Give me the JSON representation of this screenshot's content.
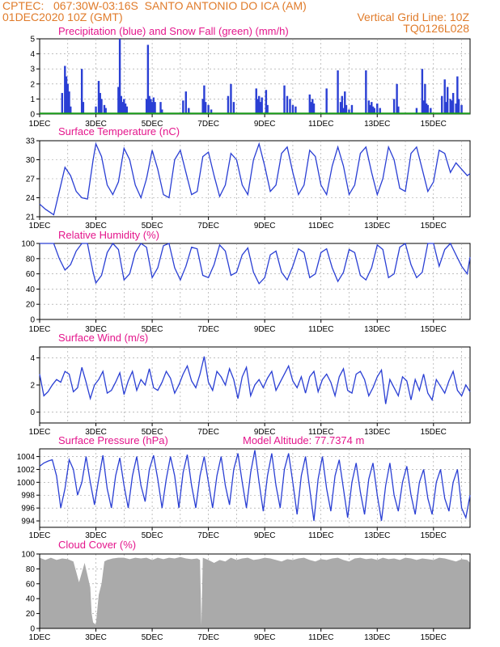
{
  "header": {
    "line1": "CPTEC:   067:30W-03:16S  SANTO ANTONIO DO ICA (AM)",
    "line2_left": "01DEC2020 10Z (GMT)",
    "line2_right": "Vertical Grid Line: 10Z",
    "line3_right": "TQ0126L028"
  },
  "colors": {
    "title": "#e4168c",
    "header": "#e07b2a",
    "line": "#2a3fd4",
    "snow": "#1a9c1a",
    "cloud": "#aaaaaa"
  },
  "x_ticks": [
    "1DEC",
    "3DEC",
    "5DEC",
    "7DEC",
    "9DEC",
    "11DEC",
    "13DEC",
    "15DEC"
  ],
  "x_tick_day": [
    1,
    3,
    5,
    7,
    9,
    11,
    13,
    15
  ],
  "x_range_days": [
    1,
    16.3
  ],
  "chart_data": [
    {
      "id": "precip",
      "type": "bar",
      "title": "Precipitation (blue) and Snow Fall (green) (mm/h)",
      "ylim": [
        0,
        5
      ],
      "yticks": [
        0,
        1,
        2,
        3,
        4,
        5
      ],
      "x_days": [
        1.8,
        1.9,
        1.95,
        2.0,
        2.05,
        2.1,
        2.5,
        2.55,
        3.0,
        3.1,
        3.15,
        3.2,
        3.3,
        3.35,
        3.8,
        3.85,
        3.9,
        3.95,
        4.0,
        4.05,
        4.1,
        4.8,
        4.85,
        4.9,
        4.95,
        5.0,
        5.05,
        5.1,
        5.3,
        5.35,
        6.1,
        6.2,
        6.3,
        6.8,
        6.85,
        6.9,
        7.0,
        7.1,
        7.7,
        7.8,
        7.9,
        8.7,
        8.75,
        8.8,
        8.85,
        8.9,
        9.05,
        9.1,
        9.7,
        9.8,
        9.9,
        10.0,
        10.1,
        10.6,
        10.65,
        10.7,
        10.75,
        11.2,
        11.6,
        11.7,
        11.75,
        11.8,
        11.85,
        11.9,
        12.0,
        12.1,
        12.6,
        12.7,
        12.75,
        12.8,
        12.85,
        12.9,
        13.0,
        13.1,
        13.6,
        13.7,
        13.75,
        14.4,
        14.6,
        14.65,
        14.7,
        14.75,
        14.8,
        14.9,
        15.3,
        15.4,
        15.45,
        15.5,
        15.6,
        15.65,
        15.7,
        15.8,
        15.85,
        15.9,
        16.0
      ],
      "values": [
        1.4,
        3.2,
        2.5,
        2.0,
        1.5,
        0.5,
        3.0,
        0.8,
        0.5,
        2.2,
        1.4,
        1.0,
        0.6,
        0.4,
        1.8,
        5.0,
        1.2,
        0.8,
        1.0,
        0.7,
        0.5,
        1.0,
        4.6,
        1.2,
        1.0,
        0.8,
        1.1,
        0.8,
        0.8,
        0.3,
        0.9,
        1.5,
        0.4,
        1.0,
        1.9,
        0.8,
        0.6,
        0.3,
        1.2,
        2.0,
        0.8,
        1.7,
        1.0,
        1.2,
        0.8,
        1.1,
        1.6,
        0.6,
        1.9,
        1.2,
        1.0,
        0.6,
        0.5,
        1.3,
        0.8,
        1.0,
        0.7,
        1.7,
        2.9,
        0.8,
        1.2,
        0.4,
        1.5,
        0.6,
        0.3,
        0.6,
        2.9,
        0.9,
        0.6,
        0.8,
        0.5,
        0.4,
        0.7,
        0.4,
        1.0,
        2.0,
        0.5,
        0.4,
        3.0,
        0.9,
        2.0,
        0.7,
        0.6,
        0.4,
        1.2,
        2.3,
        0.8,
        1.8,
        1.0,
        0.9,
        1.4,
        0.7,
        2.5,
        1.0,
        0.6
      ]
    },
    {
      "id": "temp",
      "type": "line",
      "title": "Surface Temperature (nC)",
      "ylim": [
        21,
        33
      ],
      "yticks": [
        21,
        24,
        27,
        30,
        33
      ],
      "x_days": [
        1.0,
        1.2,
        1.5,
        1.7,
        1.9,
        2.1,
        2.3,
        2.5,
        2.7,
        2.9,
        3.0,
        3.2,
        3.4,
        3.6,
        3.8,
        4.0,
        4.2,
        4.4,
        4.6,
        4.8,
        5.0,
        5.2,
        5.4,
        5.6,
        5.8,
        6.0,
        6.2,
        6.4,
        6.6,
        6.8,
        7.0,
        7.2,
        7.4,
        7.6,
        7.8,
        8.0,
        8.2,
        8.4,
        8.6,
        8.8,
        9.0,
        9.2,
        9.4,
        9.6,
        9.8,
        10.0,
        10.2,
        10.4,
        10.6,
        10.8,
        11.0,
        11.2,
        11.4,
        11.6,
        11.8,
        12.0,
        12.2,
        12.4,
        12.6,
        12.8,
        13.0,
        13.2,
        13.4,
        13.6,
        13.8,
        14.0,
        14.2,
        14.4,
        14.6,
        14.8,
        15.0,
        15.2,
        15.4,
        15.6,
        15.8,
        16.0,
        16.2,
        16.3
      ],
      "values": [
        23.0,
        22.2,
        21.3,
        25.0,
        28.8,
        27.5,
        25.0,
        24.0,
        23.8,
        30.0,
        32.5,
        30.5,
        26.0,
        24.5,
        26.5,
        31.8,
        30.0,
        26.0,
        24.0,
        27.0,
        31.5,
        28.5,
        24.5,
        24.0,
        30.0,
        31.5,
        28.0,
        24.5,
        25.0,
        30.5,
        31.2,
        27.5,
        24.2,
        26.0,
        31.0,
        30.0,
        26.0,
        24.5,
        30.0,
        32.5,
        29.0,
        25.0,
        26.0,
        31.0,
        32.0,
        28.0,
        24.5,
        26.0,
        31.5,
        30.5,
        26.0,
        24.5,
        29.0,
        32.0,
        29.0,
        24.5,
        26.0,
        31.0,
        32.0,
        28.0,
        24.5,
        27.0,
        32.0,
        30.0,
        25.5,
        25.0,
        31.0,
        32.0,
        28.5,
        25.0,
        26.5,
        31.5,
        31.0,
        28.0,
        29.5,
        28.5,
        27.5,
        27.8
      ]
    },
    {
      "id": "rh",
      "type": "line",
      "title": "Relative Humidity (%)",
      "ylim": [
        0,
        100
      ],
      "yticks": [
        0,
        20,
        40,
        60,
        80,
        100
      ],
      "x_days": [
        1.0,
        1.2,
        1.5,
        1.7,
        1.9,
        2.1,
        2.3,
        2.5,
        2.7,
        2.9,
        3.0,
        3.2,
        3.4,
        3.6,
        3.8,
        4.0,
        4.2,
        4.4,
        4.6,
        4.8,
        5.0,
        5.2,
        5.4,
        5.6,
        5.8,
        6.0,
        6.2,
        6.4,
        6.6,
        6.8,
        7.0,
        7.2,
        7.4,
        7.6,
        7.8,
        8.0,
        8.2,
        8.4,
        8.6,
        8.8,
        9.0,
        9.2,
        9.4,
        9.6,
        9.8,
        10.0,
        10.2,
        10.4,
        10.6,
        10.8,
        11.0,
        11.2,
        11.4,
        11.6,
        11.8,
        12.0,
        12.2,
        12.4,
        12.6,
        12.8,
        13.0,
        13.2,
        13.4,
        13.6,
        13.8,
        14.0,
        14.2,
        14.4,
        14.6,
        14.8,
        15.0,
        15.2,
        15.4,
        15.6,
        15.8,
        16.0,
        16.2,
        16.3
      ],
      "values": [
        100,
        100,
        100,
        80,
        65,
        72,
        90,
        100,
        100,
        62,
        48,
        58,
        88,
        100,
        92,
        52,
        60,
        88,
        100,
        95,
        55,
        68,
        97,
        100,
        68,
        52,
        70,
        95,
        93,
        58,
        55,
        72,
        98,
        90,
        58,
        62,
        85,
        94,
        62,
        47,
        55,
        85,
        90,
        62,
        52,
        70,
        93,
        88,
        55,
        60,
        88,
        93,
        68,
        50,
        62,
        92,
        88,
        58,
        52,
        68,
        98,
        92,
        55,
        60,
        95,
        100,
        72,
        55,
        62,
        100,
        100,
        70,
        92,
        100,
        85,
        70,
        60,
        82
      ]
    },
    {
      "id": "wind",
      "type": "line",
      "title": "Surface Wind (m/s)",
      "ylim": [
        -0.8,
        4.8
      ],
      "yticks": [
        0,
        2,
        4
      ],
      "x_days": [
        1.0,
        1.15,
        1.3,
        1.45,
        1.6,
        1.75,
        1.9,
        2.05,
        2.2,
        2.35,
        2.5,
        2.65,
        2.8,
        2.95,
        3.1,
        3.25,
        3.4,
        3.55,
        3.7,
        3.85,
        4.0,
        4.15,
        4.3,
        4.45,
        4.6,
        4.75,
        4.9,
        5.05,
        5.2,
        5.35,
        5.5,
        5.65,
        5.8,
        5.95,
        6.1,
        6.25,
        6.4,
        6.55,
        6.7,
        6.85,
        7.0,
        7.15,
        7.3,
        7.45,
        7.6,
        7.75,
        7.9,
        8.05,
        8.2,
        8.35,
        8.5,
        8.65,
        8.8,
        8.95,
        9.1,
        9.25,
        9.4,
        9.55,
        9.7,
        9.85,
        10.0,
        10.15,
        10.3,
        10.45,
        10.6,
        10.75,
        10.9,
        11.05,
        11.2,
        11.35,
        11.5,
        11.65,
        11.8,
        11.95,
        12.1,
        12.25,
        12.4,
        12.55,
        12.7,
        12.85,
        13.0,
        13.15,
        13.3,
        13.45,
        13.6,
        13.75,
        13.9,
        14.05,
        14.2,
        14.35,
        14.5,
        14.65,
        14.8,
        14.95,
        15.1,
        15.25,
        15.4,
        15.55,
        15.7,
        15.85,
        16.0,
        16.15,
        16.3
      ],
      "values": [
        2.8,
        1.2,
        1.5,
        2.0,
        2.4,
        2.2,
        3.0,
        2.8,
        1.5,
        1.8,
        3.3,
        2.2,
        1.0,
        2.0,
        2.4,
        3.0,
        1.4,
        1.6,
        2.2,
        2.9,
        1.3,
        2.3,
        3.0,
        1.6,
        2.4,
        2.0,
        3.2,
        1.8,
        1.6,
        2.2,
        3.0,
        2.5,
        1.4,
        2.0,
        2.8,
        3.4,
        2.3,
        1.8,
        2.8,
        4.1,
        2.2,
        1.6,
        3.0,
        2.6,
        2.0,
        3.2,
        2.4,
        1.0,
        2.6,
        3.3,
        1.2,
        2.0,
        2.4,
        1.8,
        2.5,
        3.0,
        1.6,
        2.2,
        2.8,
        3.4,
        2.3,
        1.8,
        2.6,
        1.4,
        2.6,
        3.0,
        1.5,
        2.4,
        2.8,
        2.2,
        1.2,
        2.6,
        3.2,
        1.6,
        1.4,
        2.8,
        3.0,
        2.4,
        1.2,
        1.8,
        2.6,
        3.1,
        0.6,
        2.4,
        1.8,
        1.2,
        2.6,
        2.3,
        0.9,
        2.4,
        1.6,
        2.8,
        1.4,
        0.9,
        2.4,
        1.9,
        1.4,
        2.3,
        3.0,
        1.6,
        1.2,
        2.0,
        1.5
      ]
    },
    {
      "id": "pres",
      "type": "line",
      "title": "Surface Pressure (hPa)",
      "annotation": "Model Altitude: 77.7374 m",
      "ylim": [
        993,
        1005.2
      ],
      "yticks": [
        994,
        996,
        998,
        1000,
        1002,
        1004
      ],
      "x_days": [
        1.0,
        1.15,
        1.3,
        1.45,
        1.6,
        1.75,
        1.9,
        2.05,
        2.2,
        2.35,
        2.5,
        2.65,
        2.8,
        2.95,
        3.1,
        3.25,
        3.4,
        3.55,
        3.7,
        3.85,
        4.0,
        4.15,
        4.3,
        4.45,
        4.6,
        4.75,
        4.9,
        5.05,
        5.2,
        5.35,
        5.5,
        5.65,
        5.8,
        5.95,
        6.1,
        6.25,
        6.4,
        6.55,
        6.7,
        6.85,
        7.0,
        7.15,
        7.3,
        7.45,
        7.6,
        7.75,
        7.9,
        8.05,
        8.2,
        8.35,
        8.5,
        8.65,
        8.8,
        8.95,
        9.1,
        9.25,
        9.4,
        9.55,
        9.7,
        9.85,
        10.0,
        10.15,
        10.3,
        10.45,
        10.6,
        10.75,
        10.9,
        11.05,
        11.2,
        11.35,
        11.5,
        11.65,
        11.8,
        11.95,
        12.1,
        12.25,
        12.4,
        12.55,
        12.7,
        12.85,
        13.0,
        13.15,
        13.3,
        13.45,
        13.6,
        13.75,
        13.9,
        14.05,
        14.2,
        14.35,
        14.5,
        14.65,
        14.8,
        14.95,
        15.1,
        15.25,
        15.4,
        15.55,
        15.7,
        15.85,
        16.0,
        16.15,
        16.3
      ],
      "values": [
        1002.5,
        1003.0,
        1003.3,
        1003.5,
        1001.0,
        996.0,
        999.0,
        1003.5,
        1002.0,
        998.0,
        1000.0,
        1004.0,
        1000.0,
        996.5,
        1000.5,
        1004.2,
        999.0,
        996.0,
        1001.0,
        1003.8,
        999.5,
        996.0,
        1001.0,
        1004.0,
        999.5,
        997.0,
        1002.0,
        1004.2,
        1000.5,
        996.0,
        1000.5,
        1004.0,
        1001.0,
        996.0,
        1001.5,
        1004.3,
        999.5,
        996.0,
        1001.0,
        1004.0,
        1000.0,
        996.0,
        1001.0,
        1004.0,
        999.5,
        996.5,
        1002.0,
        1004.5,
        1000.0,
        996.0,
        1001.5,
        1005.0,
        1000.0,
        995.5,
        1001.0,
        1004.5,
        999.5,
        996.0,
        1002.0,
        1004.5,
        1000.0,
        995.0,
        1001.0,
        1004.0,
        999.0,
        994.0,
        1000.5,
        1004.0,
        999.0,
        995.5,
        1001.0,
        1003.5,
        999.0,
        994.5,
        1000.0,
        1003.0,
        998.5,
        995.0,
        1000.5,
        1003.0,
        998.0,
        994.0,
        999.5,
        1003.0,
        998.0,
        995.5,
        1000.0,
        1002.5,
        998.0,
        995.0,
        1000.0,
        1002.0,
        997.5,
        995.0,
        1000.0,
        1002.0,
        997.5,
        995.5,
        1000.0,
        1002.0,
        996.0,
        994.5,
        998.0
      ]
    },
    {
      "id": "cloud",
      "type": "area",
      "title": "Cloud Cover (%)",
      "ylim": [
        0,
        100
      ],
      "yticks": [
        0,
        20,
        40,
        60,
        80,
        100
      ],
      "x_days": [
        1.0,
        1.2,
        1.4,
        1.6,
        1.8,
        2.0,
        2.2,
        2.4,
        2.6,
        2.8,
        2.85,
        2.9,
        3.0,
        3.1,
        3.2,
        3.3,
        3.4,
        3.6,
        3.8,
        4.0,
        4.2,
        4.4,
        4.6,
        4.8,
        5.0,
        5.2,
        5.4,
        5.6,
        5.8,
        6.0,
        6.2,
        6.4,
        6.6,
        6.7,
        6.75,
        6.8,
        7.0,
        7.2,
        7.4,
        7.6,
        7.8,
        8.0,
        8.2,
        8.4,
        8.6,
        8.8,
        9.0,
        9.2,
        9.4,
        9.6,
        9.8,
        10.0,
        10.2,
        10.4,
        10.6,
        10.8,
        11.0,
        11.2,
        11.4,
        11.6,
        11.8,
        12.0,
        12.2,
        12.4,
        12.6,
        12.8,
        13.0,
        13.2,
        13.4,
        13.6,
        13.8,
        14.0,
        14.2,
        14.4,
        14.6,
        14.8,
        15.0,
        15.2,
        15.4,
        15.6,
        15.8,
        16.0,
        16.2,
        16.3
      ],
      "values": [
        95,
        92,
        95,
        92,
        94,
        93,
        90,
        62,
        88,
        55,
        20,
        8,
        5,
        45,
        60,
        90,
        92,
        94,
        95,
        95,
        93,
        95,
        94,
        95,
        92,
        95,
        93,
        95,
        94,
        96,
        94,
        93,
        94,
        92,
        4,
        95,
        92,
        88,
        92,
        90,
        95,
        92,
        94,
        95,
        92,
        93,
        95,
        94,
        92,
        90,
        93,
        92,
        94,
        95,
        92,
        90,
        93,
        92,
        94,
        95,
        92,
        90,
        94,
        95,
        93,
        94,
        92,
        95,
        93,
        94,
        92,
        95,
        94,
        92,
        94,
        93,
        92,
        95,
        94,
        92,
        90,
        93,
        92,
        88
      ]
    }
  ]
}
